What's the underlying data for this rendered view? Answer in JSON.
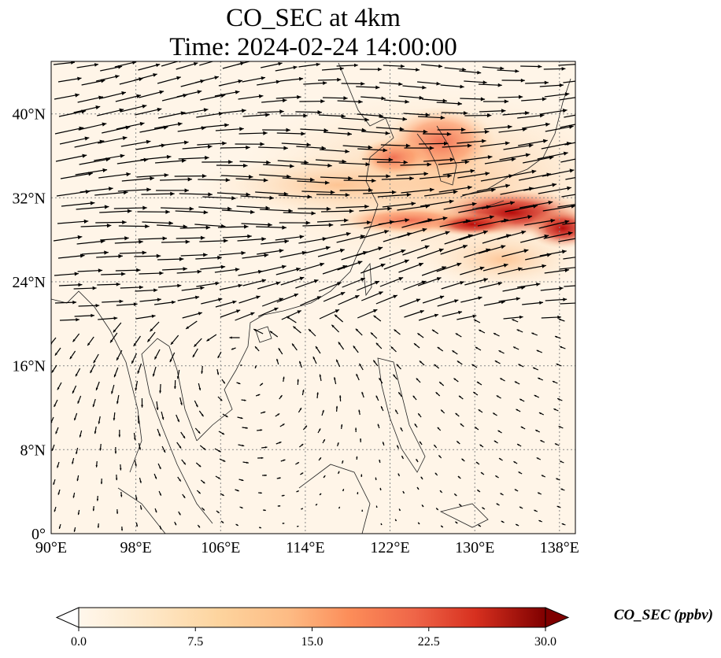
{
  "title": {
    "line1": "CO_SEC at 4km",
    "line2": "Time: 2024-02-24 14:00:00"
  },
  "map": {
    "projection": "PlateCarree",
    "lon_range": [
      90,
      139.5
    ],
    "lat_range": [
      0,
      45
    ],
    "gridlines": "dotted gray",
    "x_ticks": [
      {
        "value": 90,
        "label": "90°E"
      },
      {
        "value": 98,
        "label": "98°E"
      },
      {
        "value": 106,
        "label": "106°E"
      },
      {
        "value": 114,
        "label": "114°E"
      },
      {
        "value": 122,
        "label": "122°E"
      },
      {
        "value": 130,
        "label": "130°E"
      },
      {
        "value": 138,
        "label": "138°E"
      }
    ],
    "y_ticks": [
      {
        "value": 0,
        "label": "0°"
      },
      {
        "value": 8,
        "label": "8°N"
      },
      {
        "value": 16,
        "label": "16°N"
      },
      {
        "value": 24,
        "label": "24°N"
      },
      {
        "value": 32,
        "label": "32°N"
      },
      {
        "value": 40,
        "label": "40°N"
      }
    ],
    "field": "CO_SEC concentration filled contours (OrRd colormap) with wind vectors",
    "high_concentration_regions": [
      {
        "name": "Korea / Yellow Sea plume",
        "lon": 127,
        "lat": 36.5,
        "approx_value": 18
      },
      {
        "name": "East China Sea band",
        "lon": 124,
        "lat": 30,
        "approx_value": 20
      },
      {
        "name": "South of Japan maximum",
        "lon": 134,
        "lat": 30.5,
        "approx_value": 30
      }
    ]
  },
  "colorbar": {
    "colormap": "OrRd",
    "min": 0.0,
    "max": 30.0,
    "extend": "both",
    "ticks": [
      "0.0",
      "7.5",
      "15.0",
      "22.5",
      "30.0"
    ],
    "label": "CO_SEC (ppbv)"
  }
}
